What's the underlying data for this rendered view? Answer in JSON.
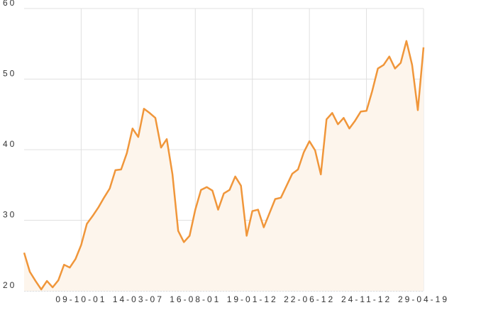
{
  "chart_data": {
    "type": "area",
    "x": [
      0,
      1,
      2,
      3,
      4,
      5,
      6,
      7,
      8,
      9,
      10,
      11,
      12,
      13,
      14,
      15,
      16,
      17,
      18,
      19,
      20,
      21,
      22,
      23,
      24,
      25,
      26,
      27,
      28,
      29,
      30,
      31,
      32,
      33,
      34,
      35,
      36,
      37,
      38,
      39,
      40,
      41,
      42,
      43,
      44,
      45,
      46,
      47,
      48,
      49,
      50,
      51,
      52,
      53,
      54,
      55,
      56,
      57,
      58,
      59,
      60,
      61,
      62,
      63,
      64,
      65,
      66,
      67,
      68,
      69,
      70
    ],
    "series": [
      {
        "color": "#f0963a",
        "fill": "#fdf5ec",
        "values": [
          25.4,
          22.7,
          21.4,
          20.2,
          21.4,
          20.5,
          21.5,
          23.7,
          23.3,
          24.5,
          26.5,
          29.5,
          30.6,
          31.8,
          33.2,
          34.5,
          37.1,
          37.2,
          39.5,
          43.0,
          41.8,
          45.8,
          45.2,
          44.5,
          40.3,
          41.5,
          36.5,
          28.5,
          26.9,
          27.8,
          31.5,
          34.3,
          34.7,
          34.2,
          31.5,
          33.8,
          34.3,
          36.2,
          34.9,
          27.8,
          31.3,
          31.5,
          29.0,
          31.0,
          33.0,
          33.2,
          34.9,
          36.6,
          37.2,
          39.6,
          41.2,
          39.9,
          36.5,
          44.3,
          45.2,
          43.6,
          44.5,
          43.0,
          44.1,
          45.4,
          45.5,
          48.3,
          51.5,
          52.0,
          53.2,
          51.5,
          52.3,
          55.4,
          52.0,
          45.6,
          54.5
        ]
      }
    ],
    "xlim": [
      0,
      70
    ],
    "xticks": [
      {
        "value": 10,
        "label": "09-10-01"
      },
      {
        "value": 20,
        "label": "14-03-07"
      },
      {
        "value": 30,
        "label": "16-08-01"
      },
      {
        "value": 40,
        "label": "19-01-12"
      },
      {
        "value": 50,
        "label": "22-06-12"
      },
      {
        "value": 60,
        "label": "24-11-12"
      },
      {
        "value": 70,
        "label": "29-04-19"
      }
    ],
    "ylim": [
      20,
      60
    ],
    "yticks": [
      20,
      30,
      40,
      50,
      60
    ],
    "grid": true
  }
}
